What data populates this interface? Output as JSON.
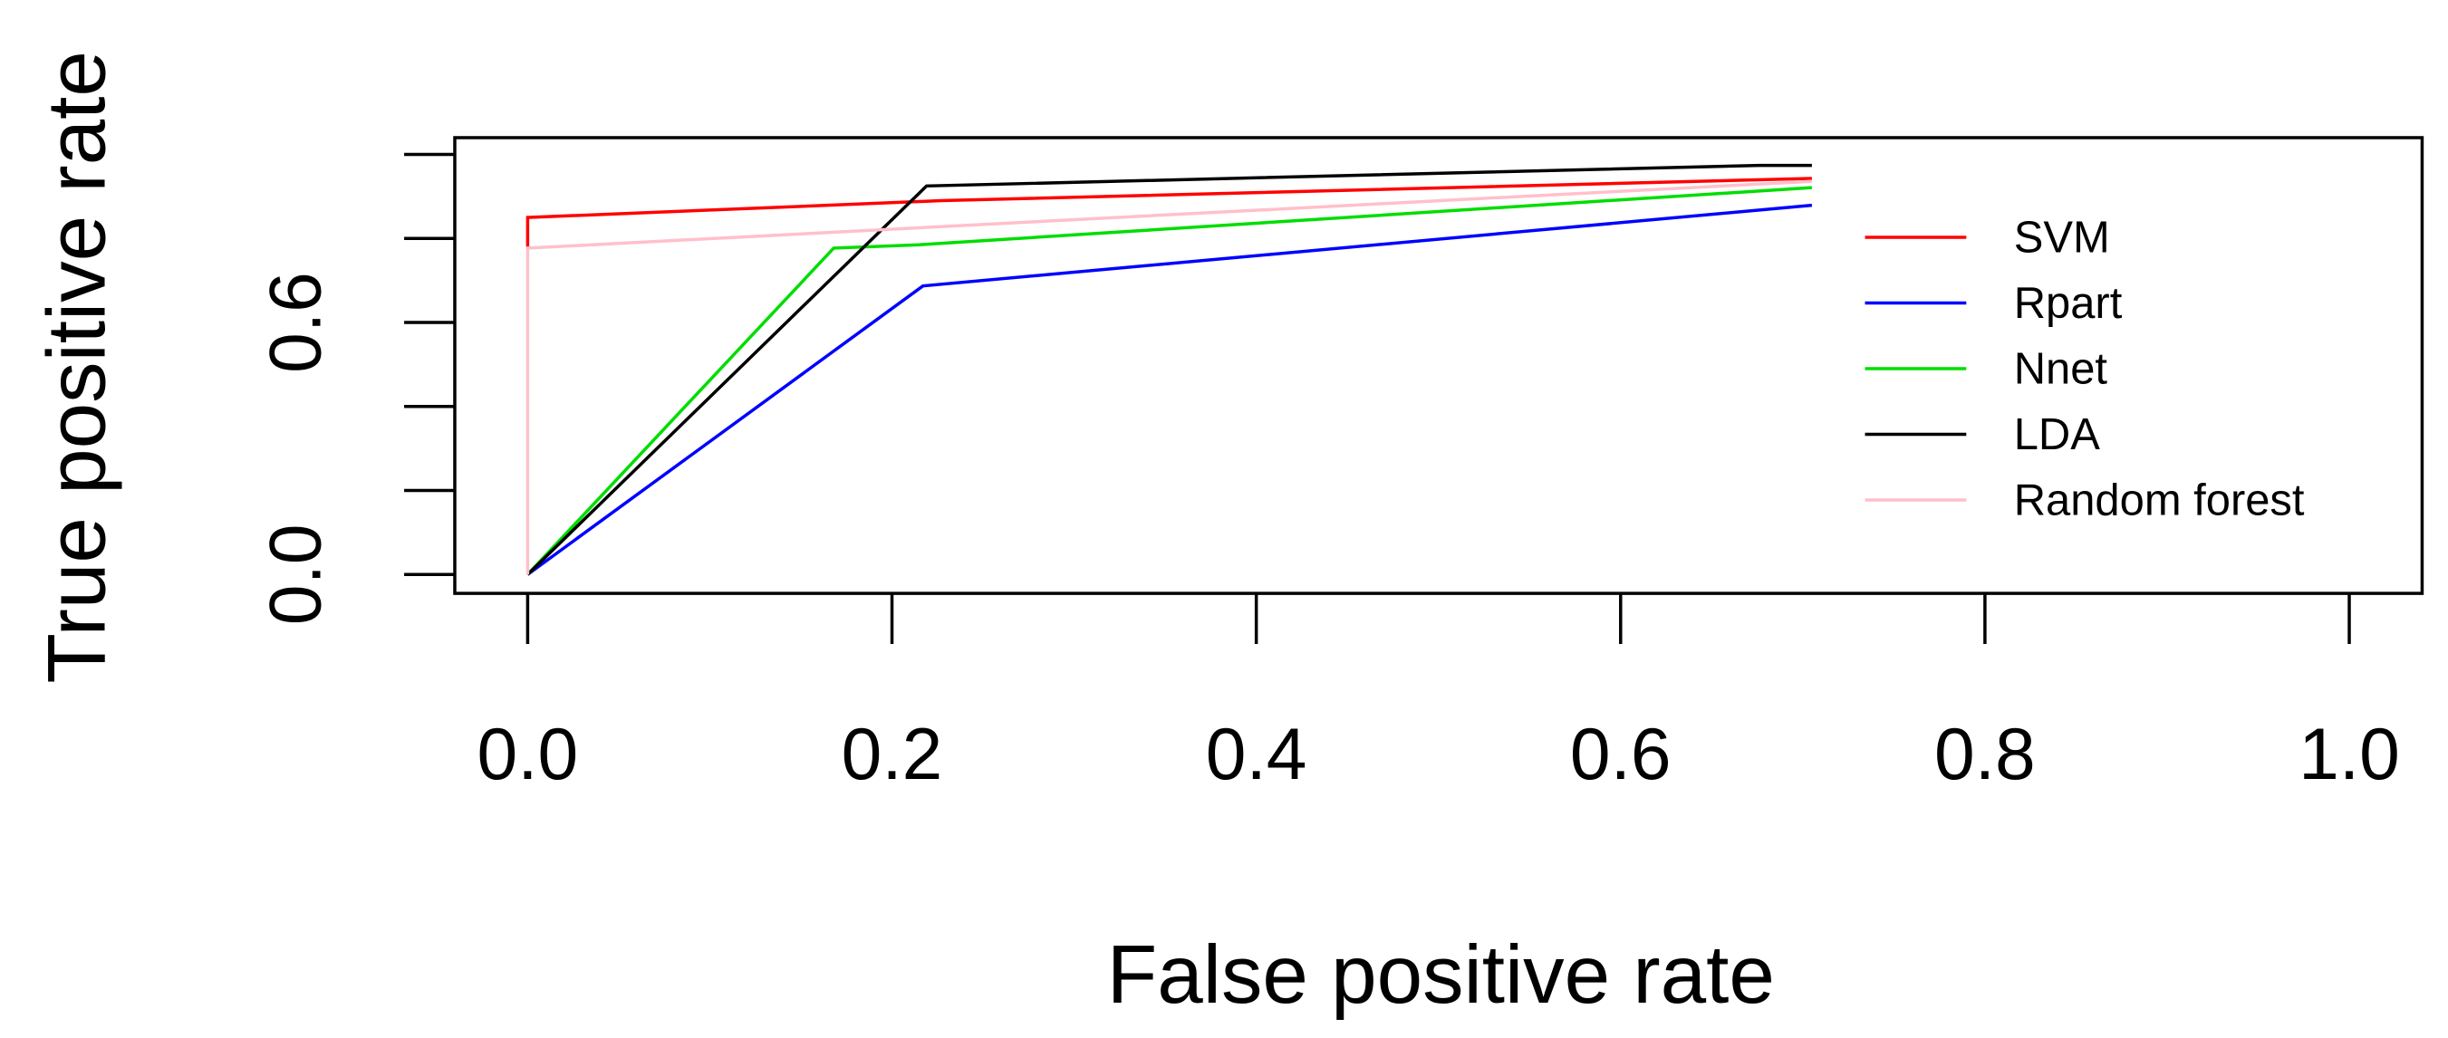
{
  "chart_data": {
    "type": "line",
    "x_label": "False positive rate",
    "y_label": "True positive rate",
    "xlim": [
      -0.04,
      1.04
    ],
    "ylim": [
      -0.045,
      1.04
    ],
    "xticks": [
      {
        "value": 0,
        "label": "0.0"
      },
      0.2,
      0.4,
      0.6,
      0.8,
      {
        "value": 1,
        "label": "1.0"
      }
    ],
    "yticks": [
      {
        "value": 0,
        "label": "0.0"
      },
      {
        "value": 0.2,
        "label": null
      },
      {
        "value": 0.4,
        "label": null
      },
      0.6,
      {
        "value": 0.8,
        "label": null
      },
      {
        "value": 1,
        "label": null
      }
    ],
    "legend": "right",
    "series": [
      {
        "name": "SVM",
        "color": "#ff0000",
        "x": [
          0,
          0,
          0.227,
          0.705
        ],
        "values": [
          0.78,
          0.85,
          0.89,
          0.943
        ]
      },
      {
        "name": "Rpart",
        "color": "#0000ff",
        "x": [
          0,
          0.217,
          0.705
        ],
        "values": [
          0,
          0.687,
          0.879
        ]
      },
      {
        "name": "Nnet",
        "color": "#00dd00",
        "x": [
          0,
          0.168,
          0.215,
          0.705
        ],
        "values": [
          0,
          0.777,
          0.785,
          0.921
        ]
      },
      {
        "name": "LDA",
        "color": "#000000",
        "x": [
          0,
          0.219,
          0.676,
          0.705
        ],
        "values": [
          0,
          0.925,
          0.974,
          0.974
        ]
      },
      {
        "name": "Random forest",
        "color": "#ffc0cb",
        "x": [
          0,
          0,
          0.705
        ],
        "values": [
          0,
          0.777,
          0.936
        ]
      }
    ]
  }
}
